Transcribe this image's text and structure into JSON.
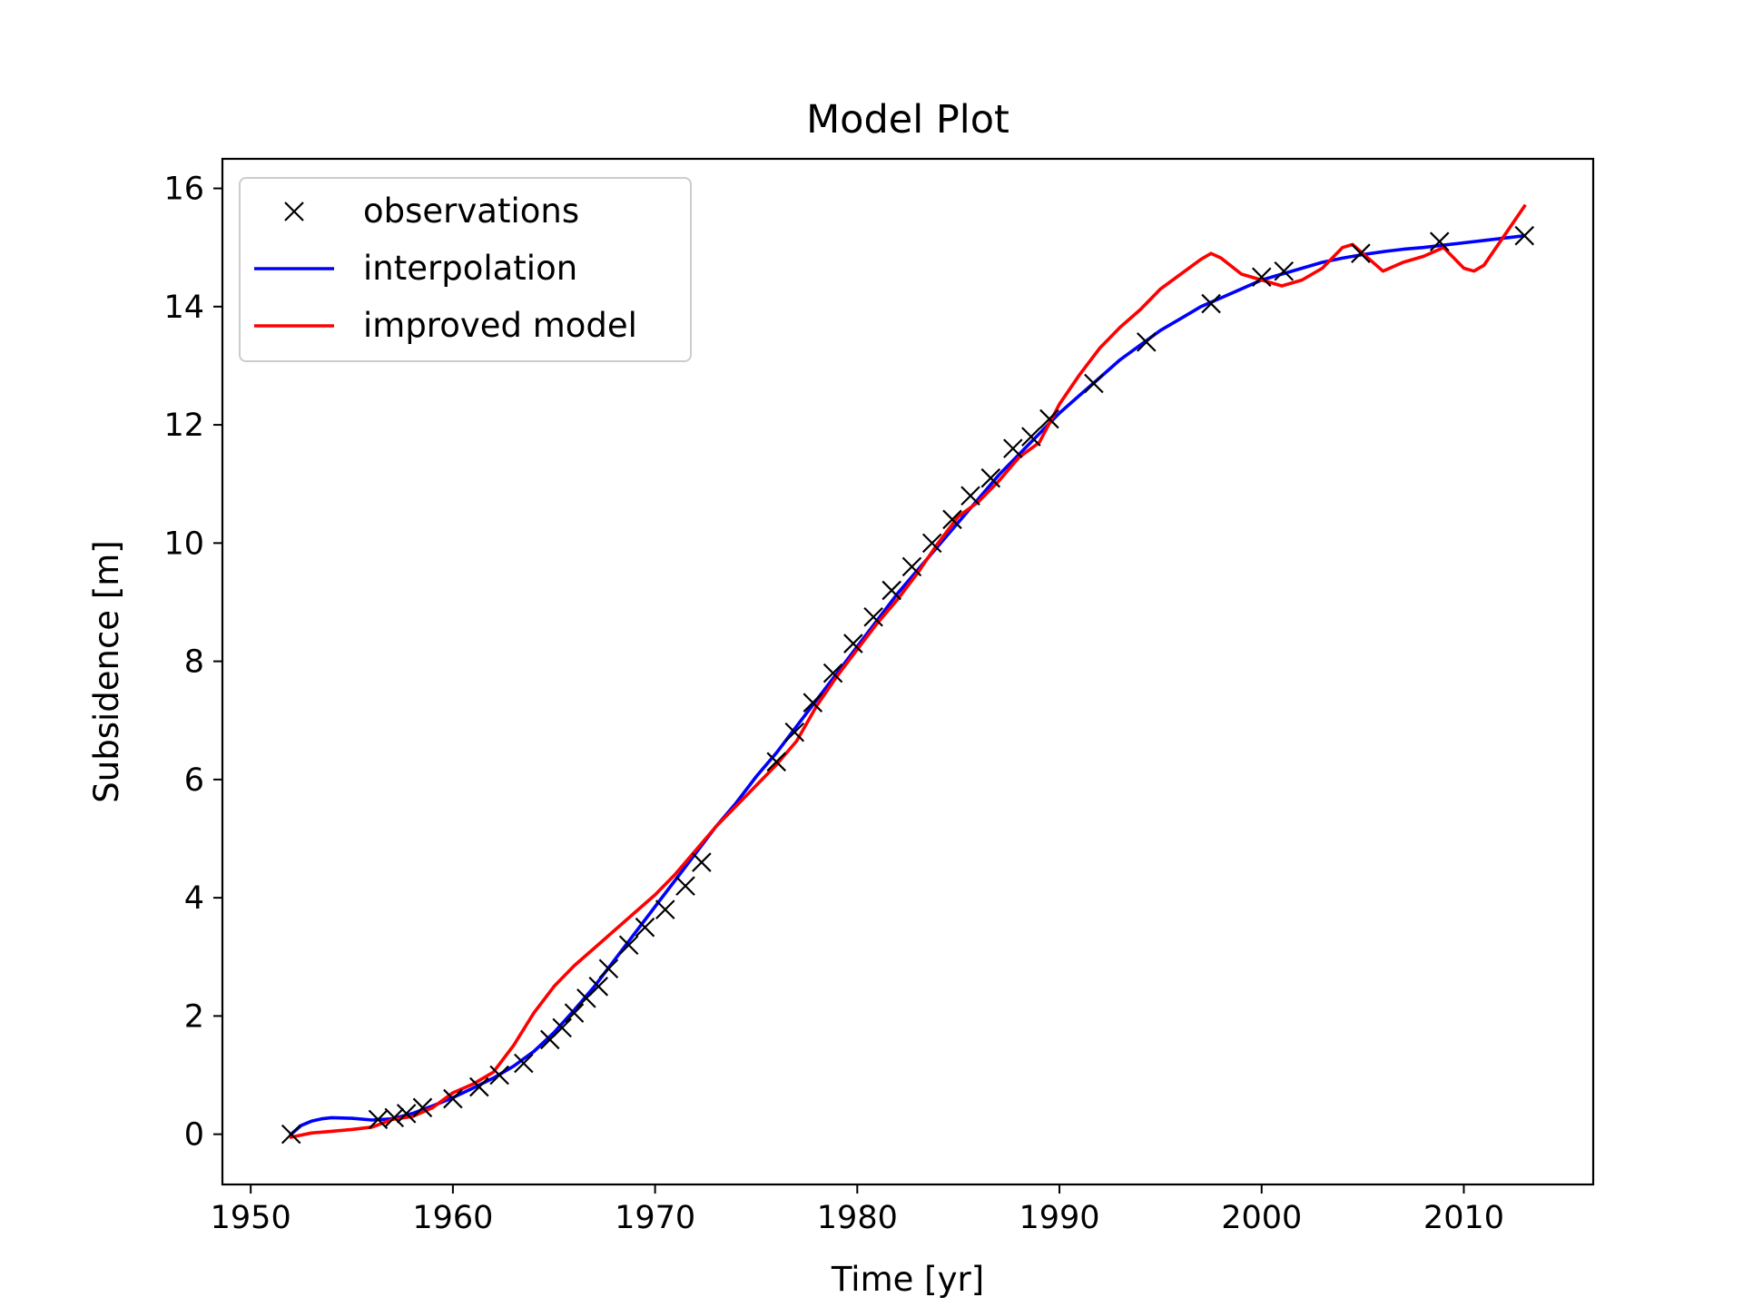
{
  "chart_data": {
    "type": "line",
    "title": "Model Plot",
    "xlabel": "Time [yr]",
    "ylabel": "Subsidence [m]",
    "xlim": [
      1948.6,
      2016.4
    ],
    "ylim": [
      -0.85,
      16.5
    ],
    "xticks": [
      1950,
      1960,
      1970,
      1980,
      1990,
      2000,
      2010
    ],
    "yticks": [
      0,
      2,
      4,
      6,
      8,
      10,
      12,
      14,
      16
    ],
    "grid": false,
    "legend_position": "upper-left",
    "series": [
      {
        "name": "observations",
        "marker": "x",
        "color": "#000000",
        "x": [
          1952.0,
          1956.3,
          1957.1,
          1957.7,
          1958.5,
          1960.0,
          1961.3,
          1962.3,
          1963.5,
          1964.8,
          1965.4,
          1966.0,
          1966.6,
          1967.2,
          1967.7,
          1968.7,
          1969.5,
          1970.5,
          1971.5,
          1972.3,
          1976.0,
          1976.9,
          1977.8,
          1978.8,
          1979.8,
          1980.8,
          1981.7,
          1982.7,
          1983.7,
          1984.7,
          1985.6,
          1986.6,
          1987.7,
          1988.6,
          1989.5,
          1991.7,
          1994.3,
          1997.5,
          2000.0,
          2001.1,
          2004.9,
          2008.8,
          2013.0
        ],
        "y": [
          0.0,
          0.25,
          0.28,
          0.35,
          0.45,
          0.6,
          0.8,
          1.0,
          1.2,
          1.6,
          1.8,
          2.05,
          2.3,
          2.5,
          2.8,
          3.2,
          3.5,
          3.8,
          4.2,
          4.6,
          6.3,
          6.8,
          7.3,
          7.8,
          8.3,
          8.75,
          9.2,
          9.6,
          10.0,
          10.4,
          10.8,
          11.1,
          11.6,
          11.8,
          12.1,
          12.7,
          13.4,
          14.05,
          14.5,
          14.6,
          14.9,
          15.1,
          15.2
        ]
      },
      {
        "name": "interpolation",
        "color": "#0000ff",
        "x": [
          1952.0,
          1952.5,
          1953.0,
          1953.5,
          1954.0,
          1955.0,
          1956.0,
          1957.0,
          1958.0,
          1959.0,
          1960.0,
          1961.0,
          1962.0,
          1963.0,
          1964.0,
          1965.0,
          1966.0,
          1967.0,
          1968.0,
          1969.0,
          1970.0,
          1971.0,
          1972.0,
          1973.0,
          1974.0,
          1975.0,
          1976.0,
          1977.0,
          1978.0,
          1979.0,
          1980.0,
          1981.0,
          1982.0,
          1983.0,
          1984.0,
          1985.0,
          1986.0,
          1987.0,
          1988.0,
          1989.0,
          1990.0,
          1991.0,
          1992.0,
          1993.0,
          1994.0,
          1995.0,
          1996.0,
          1997.0,
          1998.0,
          1999.0,
          2000.0,
          2001.0,
          2002.0,
          2003.0,
          2004.0,
          2005.0,
          2006.0,
          2007.0,
          2008.0,
          2009.0,
          2010.0,
          2011.0,
          2012.0,
          2013.0
        ],
        "y": [
          0.0,
          0.15,
          0.22,
          0.26,
          0.28,
          0.27,
          0.24,
          0.26,
          0.35,
          0.48,
          0.62,
          0.78,
          0.95,
          1.15,
          1.4,
          1.72,
          2.1,
          2.5,
          2.95,
          3.4,
          3.85,
          4.3,
          4.75,
          5.2,
          5.6,
          6.05,
          6.45,
          6.9,
          7.35,
          7.8,
          8.25,
          8.7,
          9.15,
          9.55,
          9.95,
          10.35,
          10.75,
          11.15,
          11.5,
          11.85,
          12.2,
          12.5,
          12.8,
          13.1,
          13.35,
          13.6,
          13.8,
          14.0,
          14.15,
          14.3,
          14.45,
          14.55,
          14.65,
          14.75,
          14.82,
          14.88,
          14.93,
          14.97,
          15.0,
          15.04,
          15.08,
          15.12,
          15.16,
          15.2
        ]
      },
      {
        "name": "improved model",
        "color": "#ff0000",
        "x": [
          1952.0,
          1953.0,
          1954.0,
          1955.0,
          1956.0,
          1957.0,
          1958.0,
          1959.0,
          1960.0,
          1961.0,
          1962.0,
          1963.0,
          1964.0,
          1965.0,
          1966.0,
          1967.0,
          1968.0,
          1969.0,
          1970.0,
          1971.0,
          1972.0,
          1973.0,
          1974.0,
          1975.0,
          1976.0,
          1977.0,
          1978.0,
          1979.0,
          1980.0,
          1981.0,
          1982.0,
          1983.0,
          1984.0,
          1985.0,
          1986.0,
          1987.0,
          1988.0,
          1989.0,
          1990.0,
          1991.0,
          1992.0,
          1993.0,
          1994.0,
          1995.0,
          1996.0,
          1997.0,
          1997.5,
          1998.0,
          1999.0,
          2000.0,
          2001.0,
          2002.0,
          2003.0,
          2004.0,
          2004.5,
          2005.0,
          2006.0,
          2007.0,
          2008.0,
          2009.0,
          2010.0,
          2010.5,
          2011.0,
          2012.0,
          2013.0
        ],
        "y": [
          -0.05,
          0.02,
          0.05,
          0.08,
          0.12,
          0.25,
          0.3,
          0.45,
          0.7,
          0.85,
          1.05,
          1.5,
          2.05,
          2.5,
          2.85,
          3.15,
          3.45,
          3.75,
          4.05,
          4.4,
          4.8,
          5.2,
          5.55,
          5.9,
          6.25,
          6.65,
          7.25,
          7.75,
          8.2,
          8.65,
          9.05,
          9.5,
          10.0,
          10.45,
          10.7,
          11.05,
          11.45,
          11.7,
          12.35,
          12.85,
          13.3,
          13.65,
          13.95,
          14.3,
          14.55,
          14.8,
          14.9,
          14.82,
          14.55,
          14.45,
          14.35,
          14.45,
          14.65,
          15.0,
          15.05,
          14.9,
          14.6,
          14.75,
          14.85,
          15.0,
          14.65,
          14.6,
          14.7,
          15.2,
          15.7
        ]
      }
    ]
  }
}
